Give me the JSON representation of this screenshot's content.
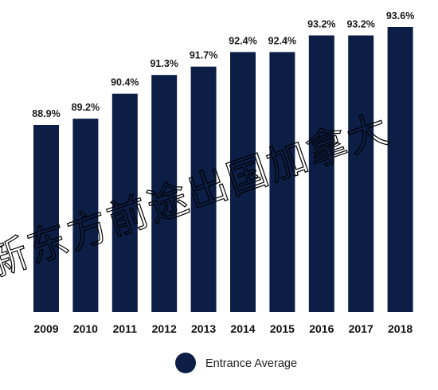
{
  "chart_data": {
    "type": "bar",
    "categories": [
      "2009",
      "2010",
      "2011",
      "2012",
      "2013",
      "2014",
      "2015",
      "2016",
      "2017",
      "2018"
    ],
    "values": [
      88.9,
      89.2,
      90.4,
      91.3,
      91.7,
      92.4,
      92.4,
      93.2,
      93.2,
      93.6
    ],
    "value_labels": [
      "88.9%",
      "89.2%",
      "90.4%",
      "91.3%",
      "91.7%",
      "92.4%",
      "92.4%",
      "93.2%",
      "93.2%",
      "93.6%"
    ],
    "series": [
      {
        "name": "Entrance Average"
      }
    ],
    "title": "",
    "xlabel": "",
    "ylabel": "",
    "legend": "bottom",
    "grid": false,
    "bar_color": "#0c1e45"
  },
  "watermark": {
    "text": "新东方前途出国加拿大"
  }
}
